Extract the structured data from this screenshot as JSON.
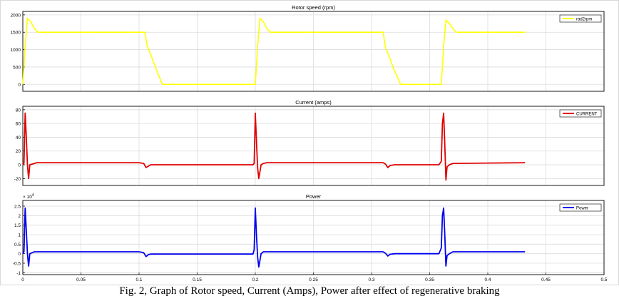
{
  "caption": "Fig. 2, Graph of Rotor speed, Current (Amps), Power after effect of regenerative braking",
  "chart_data": [
    {
      "type": "line",
      "title": "Rotor speed (rpm)",
      "xlim": [
        0,
        0.5
      ],
      "ylim": [
        -200,
        2100
      ],
      "yticks": [
        0,
        500,
        1000,
        1500,
        2000
      ],
      "ytick_labels": [
        "0",
        "500",
        "1000",
        "1500",
        "2000"
      ],
      "xticks": [],
      "xtick_labels": [],
      "exponent_label": "",
      "grid": true,
      "legend_position": "top-right",
      "series": [
        {
          "name": "rad2rpm",
          "color": "#ffff00",
          "x": [
            0,
            0.002,
            0.004,
            0.007,
            0.01,
            0.013,
            0.105,
            0.107,
            0.109,
            0.114,
            0.12,
            0.121,
            0.2,
            0.202,
            0.204,
            0.207,
            0.21,
            0.213,
            0.31,
            0.312,
            0.314,
            0.319,
            0.325,
            0.326,
            0.36,
            0.362,
            0.364,
            0.367,
            0.37,
            0.373,
            0.432
          ],
          "y": [
            0,
            1100,
            1900,
            1800,
            1600,
            1500,
            1500,
            1100,
            950,
            500,
            0,
            0,
            0,
            1100,
            1900,
            1800,
            1600,
            1500,
            1500,
            1050,
            900,
            450,
            0,
            0,
            0,
            1100,
            1850,
            1750,
            1600,
            1500,
            1500
          ]
        }
      ]
    },
    {
      "type": "line",
      "title": "Current (amps)",
      "xlim": [
        0,
        0.5
      ],
      "ylim": [
        -30,
        85
      ],
      "yticks": [
        -20,
        0,
        20,
        40,
        60,
        80
      ],
      "ytick_labels": [
        "-20",
        "0",
        "20",
        "40",
        "60",
        "80"
      ],
      "xticks": [],
      "xtick_labels": [],
      "exponent_label": "",
      "grid": true,
      "legend_position": "top-right",
      "series": [
        {
          "name": "CURRENT",
          "color": "#e00000",
          "x": [
            0,
            0.001,
            0.002,
            0.003,
            0.004,
            0.005,
            0.006,
            0.008,
            0.01,
            0.012,
            0.1,
            0.104,
            0.106,
            0.108,
            0.11,
            0.12,
            0.198,
            0.199,
            0.2,
            0.201,
            0.202,
            0.203,
            0.205,
            0.207,
            0.21,
            0.31,
            0.312,
            0.314,
            0.316,
            0.32,
            0.358,
            0.36,
            0.361,
            0.362,
            0.363,
            0.364,
            0.365,
            0.367,
            0.37,
            0.432
          ],
          "y": [
            0,
            2,
            75,
            40,
            0,
            -20,
            0,
            1,
            2,
            3,
            3,
            2,
            -4,
            -2,
            0,
            0,
            0,
            2,
            75,
            35,
            -5,
            -20,
            0,
            2,
            3,
            3,
            1,
            -4,
            -1,
            0,
            0,
            5,
            60,
            75,
            30,
            -22,
            -3,
            0,
            2,
            3
          ]
        }
      ]
    },
    {
      "type": "line",
      "title": "Power",
      "xlim": [
        0,
        0.5
      ],
      "ylim": [
        -1.1,
        2.8
      ],
      "yticks": [
        -1,
        -0.5,
        0,
        0.5,
        1,
        1.5,
        2,
        2.5
      ],
      "ytick_labels": [
        "-1",
        "-0.5",
        "0",
        "0.5",
        "1",
        "1.5",
        "2",
        "2.5"
      ],
      "xticks": [
        0,
        0.05,
        0.1,
        0.15,
        0.2,
        0.25,
        0.3,
        0.35,
        0.4,
        0.45,
        0.5
      ],
      "xtick_labels": [
        "0",
        "0.05",
        "0.1",
        "0.15",
        "0.2",
        "0.25",
        "0.3",
        "0.35",
        "0.4",
        "0.45",
        "0.5"
      ],
      "exponent_label": "x 10^4",
      "grid": true,
      "legend_position": "top-right",
      "series": [
        {
          "name": "Power",
          "color": "#0000ee",
          "x": [
            0,
            0.001,
            0.002,
            0.003,
            0.004,
            0.005,
            0.006,
            0.008,
            0.01,
            0.012,
            0.1,
            0.104,
            0.106,
            0.108,
            0.11,
            0.12,
            0.198,
            0.199,
            0.2,
            0.201,
            0.202,
            0.203,
            0.205,
            0.207,
            0.21,
            0.31,
            0.312,
            0.314,
            0.316,
            0.32,
            0.358,
            0.36,
            0.361,
            0.362,
            0.363,
            0.364,
            0.365,
            0.367,
            0.37,
            0.432
          ],
          "y": [
            0,
            0.1,
            2.4,
            1.2,
            0,
            -0.65,
            0,
            0.05,
            0.1,
            0.1,
            0.1,
            0.05,
            -0.15,
            -0.05,
            -0.02,
            -0.02,
            -0.02,
            0.2,
            2.4,
            1.0,
            -0.2,
            -0.7,
            0,
            0.1,
            0.1,
            0.1,
            0.02,
            -0.12,
            -0.03,
            0,
            0,
            0.3,
            2.0,
            2.4,
            1.0,
            -0.65,
            -0.1,
            0,
            0.1,
            0.1
          ]
        }
      ]
    }
  ]
}
